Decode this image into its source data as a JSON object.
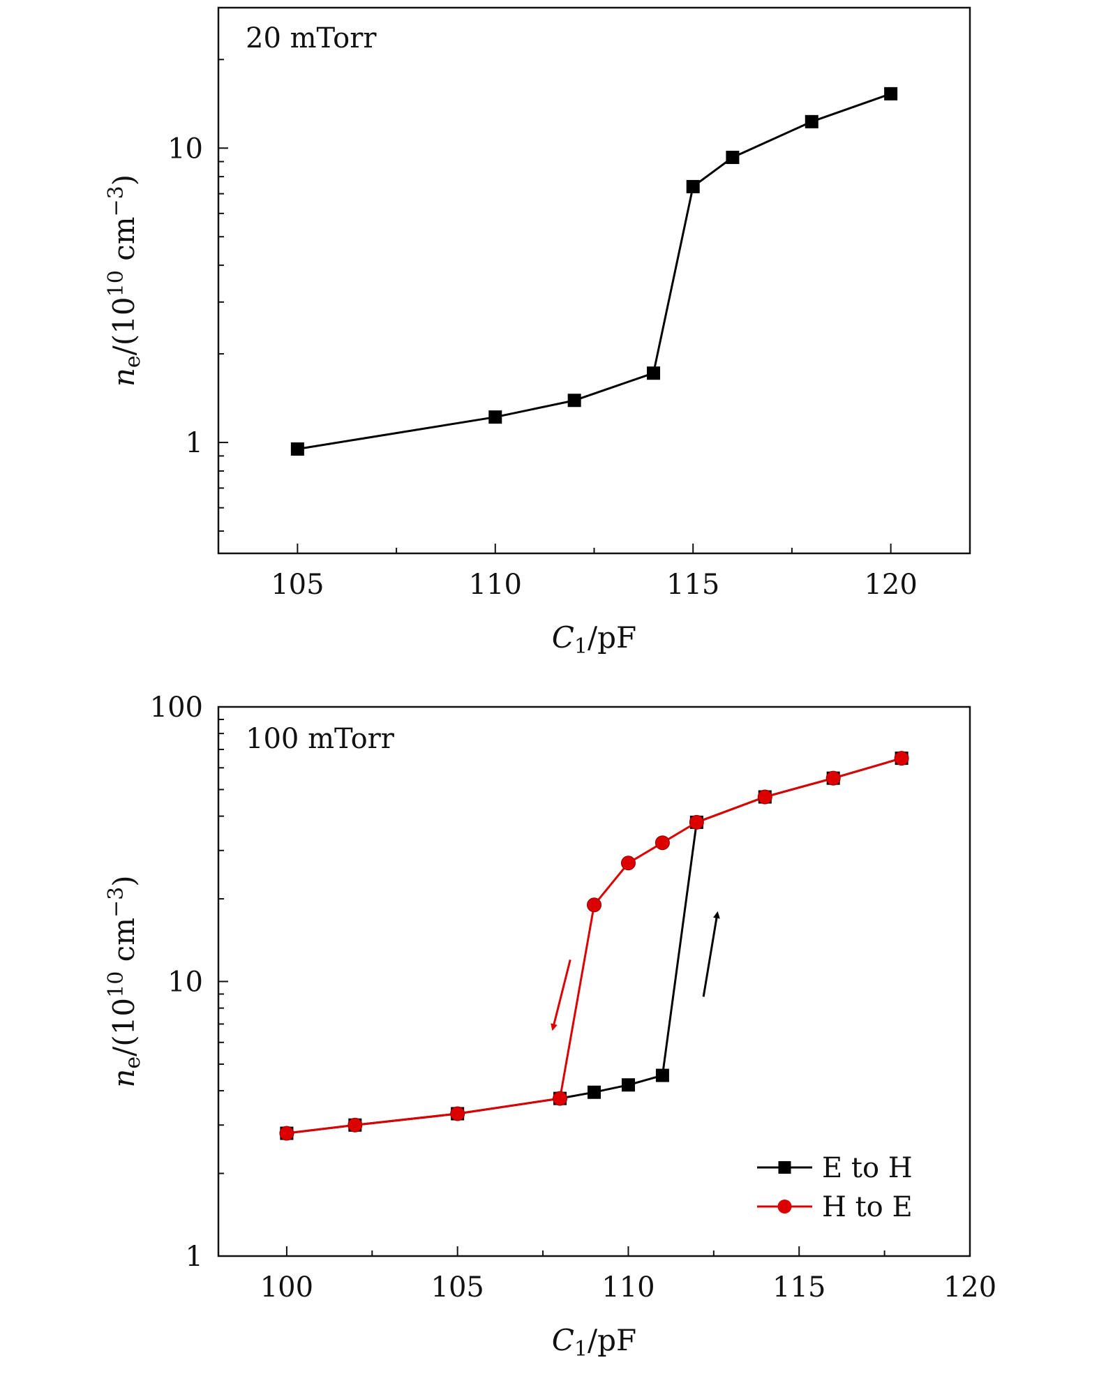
{
  "chart_data": [
    {
      "type": "line",
      "annotation": "20 mTorr",
      "xlabel": {
        "main": "C",
        "sub": "1",
        "rest": "/pF"
      },
      "ylabel": {
        "main": "n",
        "sub": "e",
        "mid": "/(10",
        "sup1": "10",
        "after": " cm",
        "sup2": "−3",
        "close": ")"
      },
      "xscale": "linear",
      "yscale": "log",
      "xlim": [
        103,
        122
      ],
      "ylim": [
        0.42,
        30
      ],
      "xticks": [
        105,
        110,
        115,
        120
      ],
      "xtick_labels": [
        "105",
        "110",
        "115",
        "120"
      ],
      "yticks": [
        1,
        10
      ],
      "ytick_labels": [
        "1",
        "10"
      ],
      "series": [
        {
          "name": "20 mTorr",
          "color": "#000000",
          "marker": "square",
          "x": [
            105,
            110,
            112,
            114,
            115,
            116,
            118,
            120
          ],
          "y": [
            0.95,
            1.22,
            1.39,
            1.72,
            7.4,
            9.3,
            12.3,
            15.3
          ]
        }
      ]
    },
    {
      "type": "line",
      "annotation": "100 mTorr",
      "xlabel": {
        "main": "C",
        "sub": "1",
        "rest": "/pF"
      },
      "ylabel": {
        "main": "n",
        "sub": "e",
        "mid": "/(10",
        "sup1": "10",
        "after": " cm",
        "sup2": "−3",
        "close": ")"
      },
      "xscale": "linear",
      "yscale": "log",
      "xlim": [
        98,
        120
      ],
      "ylim": [
        1,
        100
      ],
      "xticks": [
        100,
        105,
        110,
        115,
        120
      ],
      "xtick_labels": [
        "100",
        "105",
        "110",
        "115",
        "120"
      ],
      "yticks": [
        1,
        10,
        100
      ],
      "ytick_labels": [
        "1",
        "10",
        "100"
      ],
      "legend": {
        "position": "bottom-right"
      },
      "series": [
        {
          "name": "E to H",
          "color": "#000000",
          "marker": "square",
          "x": [
            100,
            102,
            105,
            108,
            109,
            110,
            111,
            112,
            114,
            116,
            118
          ],
          "y": [
            2.8,
            3.0,
            3.3,
            3.75,
            3.95,
            4.2,
            4.55,
            38,
            47,
            55,
            65
          ]
        },
        {
          "name": "H to E",
          "color": "#dd0000",
          "marker": "circle",
          "x": [
            100,
            102,
            105,
            108,
            109,
            110,
            111,
            112,
            114,
            116,
            118
          ],
          "y": [
            2.8,
            3.0,
            3.3,
            3.75,
            19,
            27,
            32,
            38,
            47,
            55,
            65
          ]
        }
      ],
      "arrows": [
        {
          "color": "#dd0000",
          "direction": "down",
          "from": [
            108.3,
            12
          ],
          "to": [
            107.8,
            6.8
          ]
        },
        {
          "color": "#000000",
          "direction": "up",
          "from": [
            112.2,
            8.8
          ],
          "to": [
            112.6,
            17.5
          ]
        }
      ]
    }
  ]
}
